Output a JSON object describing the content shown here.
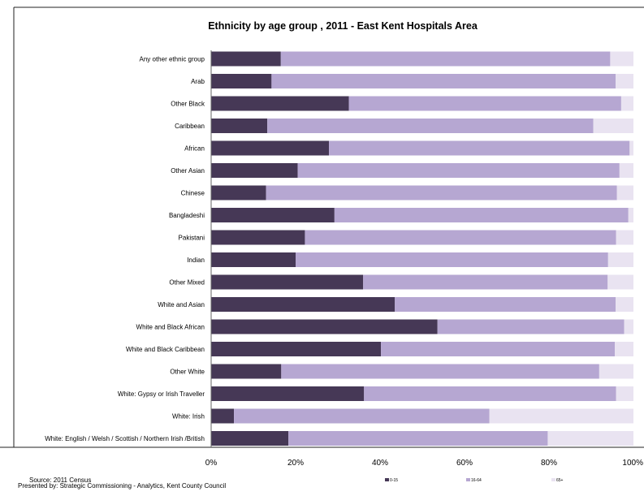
{
  "chart_data": {
    "type": "bar",
    "orientation": "horizontal",
    "stacked": true,
    "percent_stacked": true,
    "title": "Ethnicity by age group , 2011 - East Kent Hospitals Area",
    "categories": [
      "Any other ethnic group",
      "Arab",
      "Other Black",
      "Caribbean",
      "African",
      "Other Asian",
      "Chinese",
      "Bangladeshi",
      "Pakistani",
      "Indian",
      "Other Mixed",
      "White and Asian",
      "White and Black African",
      "White and Black Caribbean",
      "Other White",
      "White: Gypsy or Irish Traveller",
      "White: Irish",
      "White: English / Welsh / Scottish / Northern Irish /British"
    ],
    "series": [
      {
        "name": "0-15",
        "color": "#463856",
        "values": [
          16.5,
          14.3,
          32.6,
          13.3,
          27.9,
          20.5,
          13.0,
          29.2,
          22.2,
          20.0,
          36.0,
          43.5,
          53.6,
          40.2,
          16.6,
          36.2,
          5.4,
          18.3
        ]
      },
      {
        "name": "16-64",
        "color": "#b6a7d2",
        "values": [
          78.0,
          81.5,
          64.5,
          77.2,
          71.2,
          76.2,
          83.1,
          69.6,
          73.7,
          74.0,
          57.9,
          52.3,
          44.2,
          55.4,
          75.3,
          59.7,
          60.5,
          61.4
        ]
      },
      {
        "name": "65+",
        "color": "#e9e3f1",
        "values": [
          5.5,
          4.2,
          2.9,
          9.5,
          0.9,
          3.3,
          3.9,
          1.2,
          4.1,
          6.0,
          6.1,
          4.2,
          2.2,
          4.4,
          8.1,
          4.1,
          34.1,
          20.3
        ]
      }
    ],
    "x_ticks": [
      "0%",
      "20%",
      "40%",
      "60%",
      "80%",
      "100%"
    ],
    "xlim": [
      0,
      100
    ],
    "legend_position": "bottom-right",
    "grid": false
  },
  "source_text": "Source: 2011 Census",
  "presented_by_text": "Presented by: Strategic Commissioning - Analytics, Kent County Council"
}
